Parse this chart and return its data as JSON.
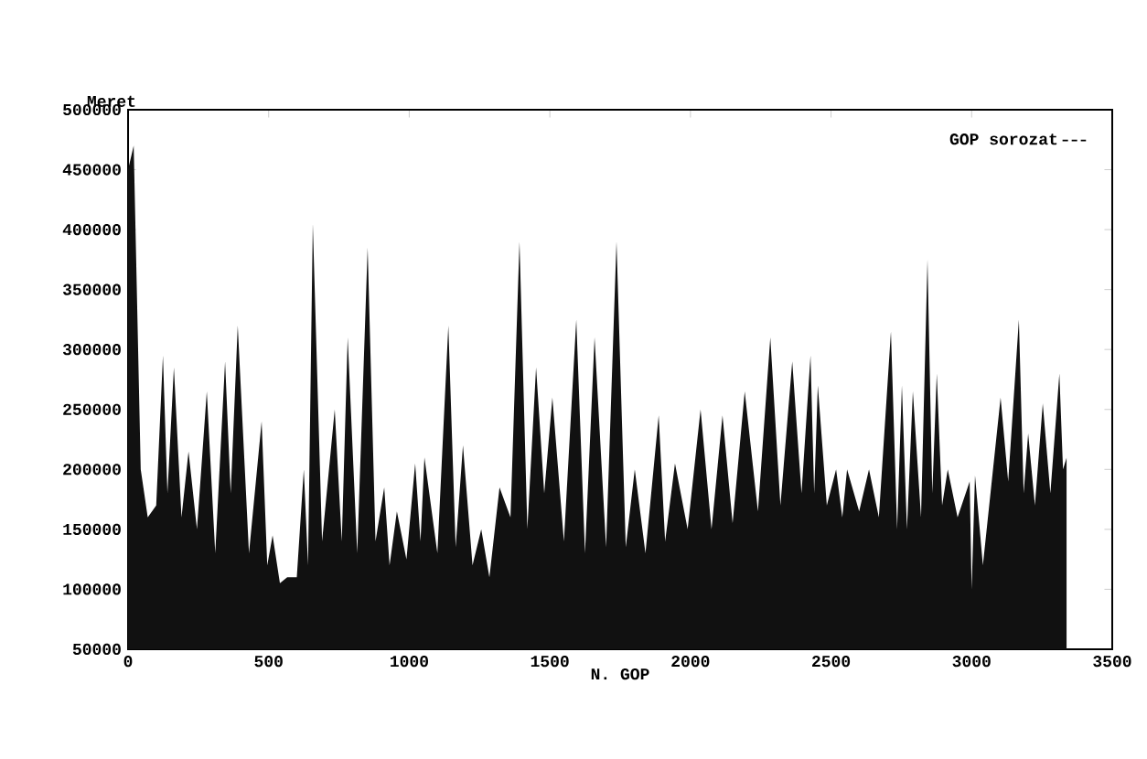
{
  "chart_data": {
    "type": "area",
    "xlabel": "N. GOP",
    "ylabel": "Meret",
    "series": [
      {
        "name": "GOP sorozat",
        "color": "#111111",
        "x": [
          0,
          20,
          45,
          70,
          100,
          124,
          140,
          163,
          190,
          215,
          245,
          280,
          310,
          345,
          365,
          390,
          430,
          475,
          495,
          514,
          540,
          566,
          600,
          625,
          640,
          657,
          690,
          735,
          760,
          781,
          815,
          852,
          880,
          911,
          930,
          956,
          990,
          1021,
          1040,
          1054,
          1100,
          1139,
          1165,
          1191,
          1225,
          1256,
          1285,
          1321,
          1360,
          1392,
          1420,
          1451,
          1480,
          1509,
          1550,
          1594,
          1625,
          1659,
          1700,
          1737,
          1770,
          1802,
          1840,
          1887,
          1910,
          1945,
          1990,
          2036,
          2075,
          2114,
          2150,
          2193,
          2240,
          2284,
          2320,
          2362,
          2395,
          2427,
          2440,
          2453,
          2485,
          2518,
          2540,
          2557,
          2600,
          2635,
          2670,
          2713,
          2735,
          2752,
          2770,
          2791,
          2820,
          2843,
          2860,
          2876,
          2895,
          2915,
          2950,
          2993,
          3000,
          3012,
          3040,
          3103,
          3130,
          3168,
          3185,
          3201,
          3225,
          3253,
          3280,
          3312,
          3325,
          3338
        ],
        "values": [
          450000,
          470000,
          200000,
          160000,
          170000,
          295000,
          180000,
          285000,
          160000,
          215000,
          150000,
          265000,
          130000,
          290000,
          180000,
          320000,
          130000,
          240000,
          120000,
          145000,
          105000,
          110000,
          110000,
          200000,
          120000,
          405000,
          140000,
          250000,
          140000,
          310000,
          130000,
          385000,
          140000,
          185000,
          120000,
          165000,
          125000,
          205000,
          140000,
          210000,
          130000,
          320000,
          135000,
          220000,
          120000,
          150000,
          110000,
          185000,
          160000,
          390000,
          150000,
          285000,
          180000,
          260000,
          140000,
          325000,
          130000,
          310000,
          135000,
          390000,
          135000,
          200000,
          130000,
          245000,
          140000,
          205000,
          150000,
          250000,
          150000,
          245000,
          155000,
          265000,
          165000,
          310000,
          170000,
          290000,
          180000,
          295000,
          180000,
          270000,
          170000,
          200000,
          160000,
          200000,
          165000,
          200000,
          160000,
          315000,
          150000,
          270000,
          150000,
          265000,
          160000,
          375000,
          180000,
          280000,
          170000,
          200000,
          160000,
          190000,
          100000,
          195000,
          120000,
          260000,
          190000,
          325000,
          180000,
          230000,
          170000,
          255000,
          180000,
          280000,
          200000,
          210000
        ]
      }
    ],
    "xlim": [
      0,
      3500
    ],
    "ylim": [
      50000,
      500000
    ],
    "xticks": [
      0,
      500,
      1000,
      1500,
      2000,
      2500,
      3000,
      3500
    ],
    "yticks": [
      50000,
      100000,
      150000,
      200000,
      250000,
      300000,
      350000,
      400000,
      450000,
      500000
    ],
    "legend": "top right"
  }
}
